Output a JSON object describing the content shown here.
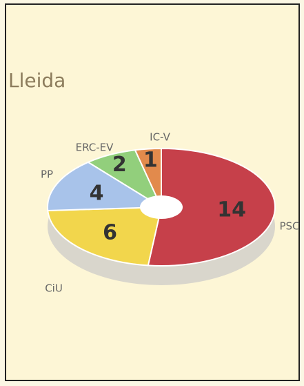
{
  "chart_data": {
    "type": "pie",
    "title": "Lleida",
    "categories": [
      "PSC",
      "CiU",
      "PP",
      "ERC-EV",
      "IC-V"
    ],
    "values": [
      14,
      6,
      4,
      2,
      1
    ],
    "colors": [
      "#c6404a",
      "#f2d64c",
      "#a8c3ea",
      "#92cf7c",
      "#e28a4c"
    ]
  }
}
